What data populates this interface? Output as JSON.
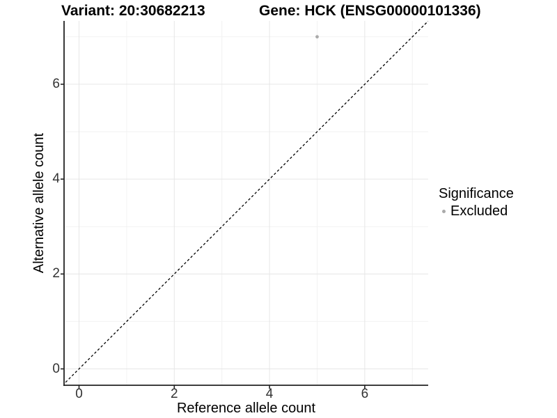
{
  "chart_data": {
    "type": "scatter",
    "title_left": "Variant: 20:30682213",
    "title_right": "Gene: HCK (ENSG00000101336)",
    "xlabel": "Reference allele count",
    "ylabel": "Alternative allele count",
    "xlim": [
      -0.35,
      7.35
    ],
    "ylim": [
      -0.35,
      7.35
    ],
    "xticks": [
      0,
      2,
      4,
      6
    ],
    "yticks": [
      0,
      2,
      4,
      6
    ],
    "x_minor": [
      1,
      3,
      5,
      7
    ],
    "y_minor": [
      1,
      3,
      5,
      7
    ],
    "grid": "major+minor",
    "reference_line": {
      "type": "identity",
      "style": "dashed",
      "color": "#000000"
    },
    "series": [
      {
        "name": "Excluded",
        "color": "#aaaaaa",
        "points": [
          {
            "x": 5,
            "y": 7
          }
        ]
      }
    ],
    "legend": {
      "title": "Significance",
      "position": "right",
      "entries": [
        {
          "label": "Excluded",
          "color": "#aaaaaa"
        }
      ]
    }
  },
  "colors": {
    "background": "#ffffff",
    "grid_major": "#e6e6e6",
    "grid_minor": "#f2f2f2",
    "axis_line": "#222222",
    "tick_label": "#333333",
    "point": "#aaaaaa"
  }
}
